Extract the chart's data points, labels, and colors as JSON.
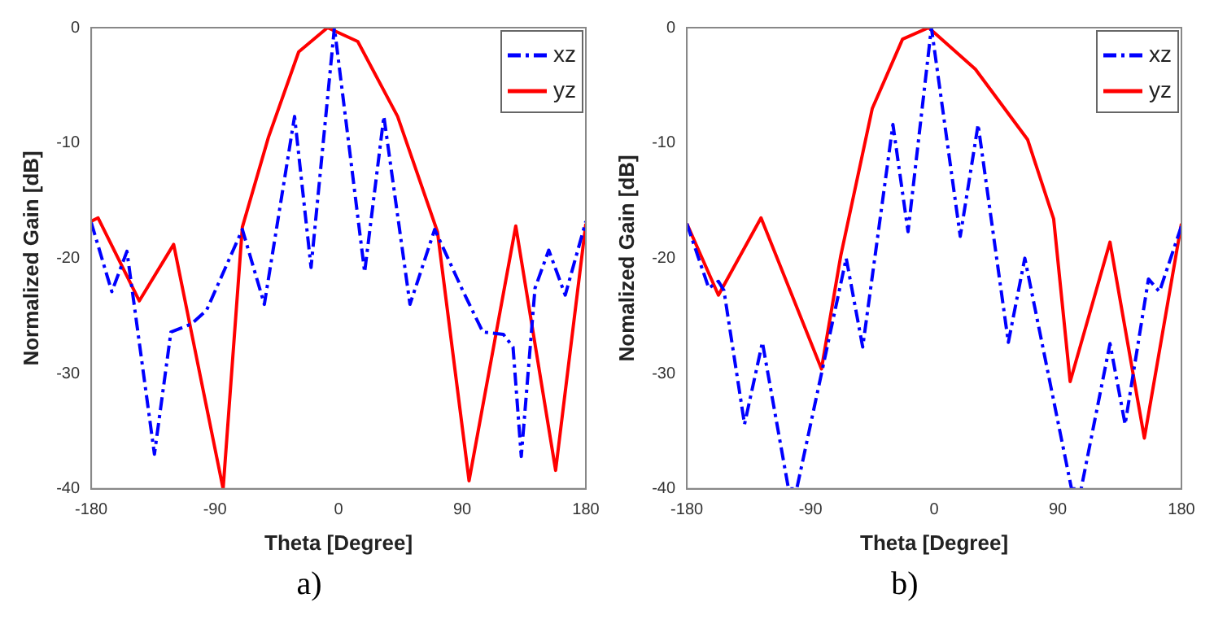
{
  "chart_data": [
    {
      "type": "line",
      "xlabel": "Theta [Degree]",
      "ylabel": "Normalized Gain [dB]",
      "annotations": [
        "a)"
      ],
      "xlim": [
        -180,
        180
      ],
      "xticks": [
        -180,
        -90,
        0,
        90,
        180
      ],
      "ylim": [
        -40,
        0
      ],
      "yticks": [
        -40,
        -30,
        -20,
        -10,
        0
      ],
      "grid": false,
      "legend": "top right",
      "marker": "none",
      "series": [
        {
          "name": "xz",
          "color": "#0000ff",
          "line_style": "dashed",
          "x": [
            -180,
            -165,
            -154,
            -134,
            -122,
            -107,
            -96,
            -70,
            -54,
            -32,
            -20,
            -3,
            19,
            33,
            52,
            70,
            90,
            105,
            120,
            127,
            133,
            143,
            153,
            165,
            180
          ],
          "values": [
            -16.9,
            -22.9,
            -19.4,
            -37,
            -26.4,
            -25.7,
            -24.5,
            -17.5,
            -24,
            -7.7,
            -20.8,
            0,
            -21.2,
            -7.7,
            -24,
            -17.5,
            -22.7,
            -26.4,
            -26.6,
            -27.7,
            -37.2,
            -22.6,
            -19.3,
            -23.2,
            -16.8
          ]
        },
        {
          "name": "yz",
          "color": "#ff0000",
          "line_style": "solid",
          "x": [
            -180,
            -175,
            -145,
            -120,
            -84,
            -70,
            -51,
            -29,
            -8,
            14,
            43,
            72,
            95,
            129,
            158,
            180
          ],
          "values": [
            -16.8,
            -16.5,
            -23.7,
            -18.8,
            -40,
            -17.3,
            -9.5,
            -2.1,
            0,
            -1.2,
            -7.7,
            -17.7,
            -39.3,
            -17.2,
            -38.4,
            -17
          ]
        }
      ]
    },
    {
      "type": "line",
      "xlabel": "Theta [Degree]",
      "ylabel": "Nomalized Gain [dB]",
      "annotations": [
        "b)"
      ],
      "xlim": [
        -180,
        180
      ],
      "xticks": [
        -180,
        -90,
        0,
        90,
        180
      ],
      "ylim": [
        -40,
        0
      ],
      "yticks": [
        -40,
        -30,
        -20,
        -10,
        0
      ],
      "grid": false,
      "legend": "top right",
      "marker": "none",
      "series": [
        {
          "name": "xz",
          "color": "#0000ff",
          "line_style": "dashed",
          "x": [
            -180,
            -164,
            -157,
            -153,
            -138,
            -125,
            -106,
            -100,
            -64,
            -52,
            -30,
            -19,
            -2,
            19,
            32,
            54,
            66,
            100,
            107,
            128,
            139,
            156,
            164,
            180
          ],
          "values": [
            -17,
            -22.6,
            -22,
            -22.8,
            -34.4,
            -27.3,
            -40,
            -40,
            -20,
            -27.7,
            -8.4,
            -17.7,
            0,
            -18.1,
            -8.4,
            -27.3,
            -20,
            -40,
            -40,
            -27.4,
            -34.4,
            -21.8,
            -22.9,
            -17.2
          ]
        },
        {
          "name": "yz",
          "color": "#ff0000",
          "line_style": "solid",
          "x": [
            -180,
            -157,
            -126,
            -82,
            -68,
            -45,
            -23,
            -4,
            30,
            68,
            87,
            99,
            128,
            153,
            180
          ],
          "values": [
            -17,
            -23.2,
            -16.5,
            -29.6,
            -19.8,
            -7,
            -1,
            0,
            -3.6,
            -9.7,
            -16.6,
            -30.7,
            -18.6,
            -35.6,
            -17
          ]
        }
      ]
    }
  ]
}
